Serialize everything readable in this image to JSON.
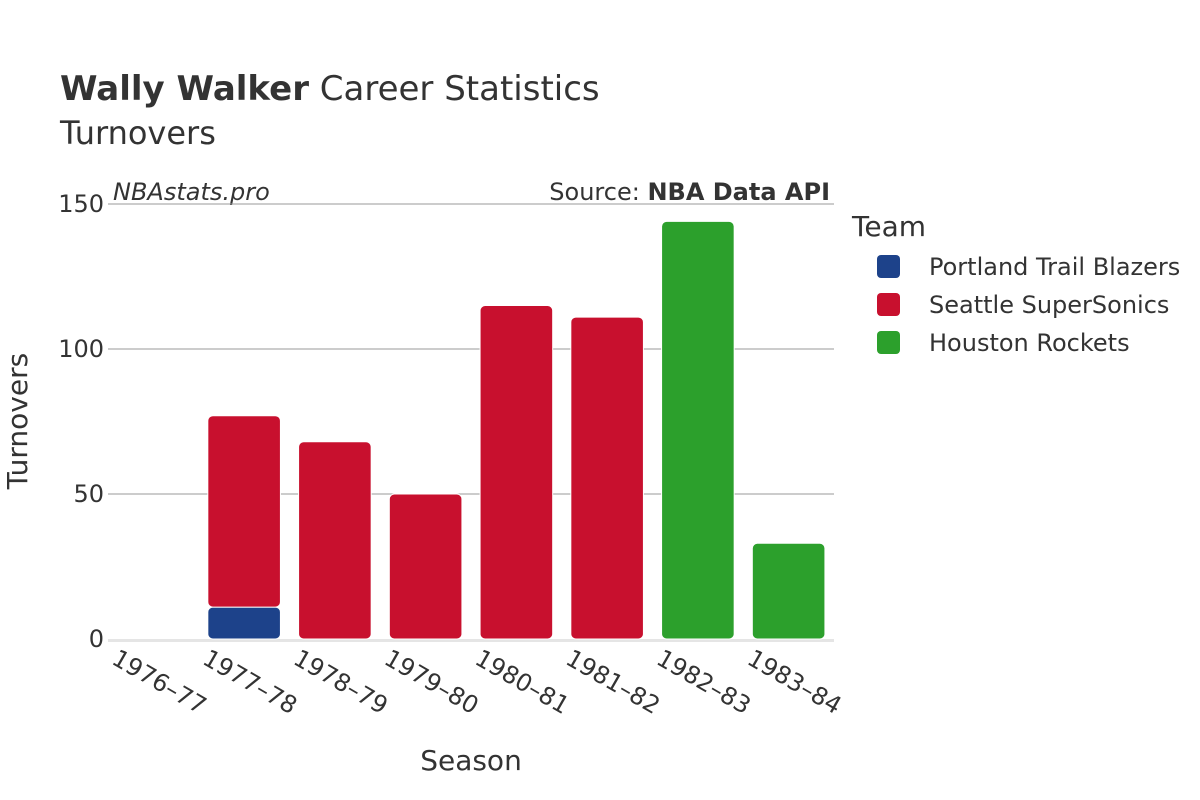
{
  "header": {
    "title_bold": "Wally Walker",
    "title_rest": " Career Statistics",
    "subtitle": "Turnovers"
  },
  "watermark": "NBAstats.pro",
  "source": {
    "prefix": "Source: ",
    "name": "NBA Data API"
  },
  "legend": {
    "title": "Team"
  },
  "colors": {
    "Portland Trail Blazers": "#1d428a",
    "Seattle SuperSonics": "#c8102e",
    "Houston Rockets": "#2ca02c",
    "grid": "#999999",
    "axis": "#e5e5e5"
  },
  "chart_data": {
    "type": "bar",
    "stacked": true,
    "xlabel": "Season",
    "ylabel": "Turnovers",
    "ylim": [
      0,
      150
    ],
    "yticks": [
      0,
      50,
      100,
      150
    ],
    "categories": [
      "1976–77",
      "1977–78",
      "1978–79",
      "1979–80",
      "1980–81",
      "1981–82",
      "1982–83",
      "1983–84"
    ],
    "series": [
      {
        "name": "Portland Trail Blazers",
        "values": [
          0,
          11,
          0,
          0,
          0,
          0,
          0,
          0
        ]
      },
      {
        "name": "Seattle SuperSonics",
        "values": [
          0,
          66,
          68,
          50,
          115,
          111,
          0,
          0
        ]
      },
      {
        "name": "Houston Rockets",
        "values": [
          0,
          0,
          0,
          0,
          0,
          0,
          144,
          33
        ]
      }
    ],
    "legend_position": "right",
    "grid": true
  }
}
